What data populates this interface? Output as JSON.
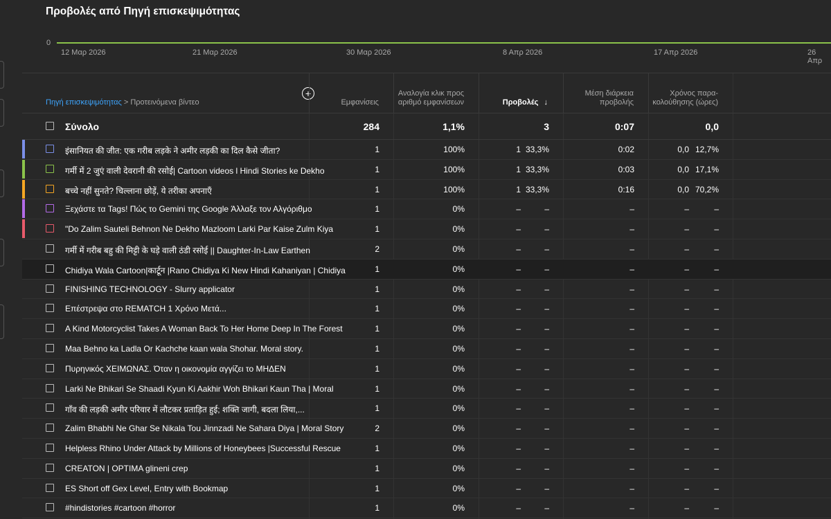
{
  "title": "Προβολές από Πηγή επισκεψιμότητας",
  "chart": {
    "y_zero": "0",
    "dates": [
      "12 Μαρ 2026",
      "21 Μαρ 2026",
      "30 Μαρ 2026",
      "8 Απρ 2026",
      "17 Απρ 2026",
      "26 Απρ"
    ],
    "line_color": "#8bc34a"
  },
  "breadcrumb": {
    "link": "Πηγή επισκεψιμότητας",
    "separator": ">",
    "current": "Προτεινόμενα βίντεο"
  },
  "columns": {
    "impressions": "Εμφανίσεις",
    "ctr": "Αναλογία κλικ προς αριθμό εμφανίσεων",
    "views": "Προβολές",
    "avg_duration": "Μέση διάρκεια προβολής",
    "watch_time": "Χρόνος παρα-κολούθησης (ώρες)"
  },
  "sort_icon": "arrow-down-icon",
  "total": {
    "label": "Σύνολο",
    "impressions": "284",
    "ctr": "1,1%",
    "views": "3",
    "avg_duration": "0:07",
    "watch_time": "0,0"
  },
  "rows": [
    {
      "title": "इंसानियत की जीत: एक गरीब लड़के ने अमीर लड़की का दिल कैसे जीता?",
      "color": "#7b8fe8",
      "impressions": "1",
      "ctr": "100%",
      "views": "1",
      "views_pct": "33,3%",
      "avg_duration": "0:02",
      "watch_time": "0,0",
      "watch_pct": "12,7%"
    },
    {
      "title": "गर्मी में 2 जुएं वाली देवरानी की रसोई| Cartoon videos l Hindi Stories ke Dekho",
      "color": "#8bc34a",
      "impressions": "1",
      "ctr": "100%",
      "views": "1",
      "views_pct": "33,3%",
      "avg_duration": "0:03",
      "watch_time": "0,0",
      "watch_pct": "17,1%"
    },
    {
      "title": "बच्चे नहीं सुनते? चिल्लाना छोड़ें, ये तरीका अपनाएँ",
      "color": "#f5a623",
      "impressions": "1",
      "ctr": "100%",
      "views": "1",
      "views_pct": "33,3%",
      "avg_duration": "0:16",
      "watch_time": "0,0",
      "watch_pct": "70,2%"
    },
    {
      "title": "Ξεχάστε τα Tags! Πώς το Gemini της Google Άλλαξε τον Αλγόριθμο",
      "color": "#b36be8",
      "impressions": "1",
      "ctr": "0%",
      "views": "–",
      "views_pct": "–",
      "avg_duration": "–",
      "watch_time": "–",
      "watch_pct": "–"
    },
    {
      "title": "\"Do Zalim Sauteli Behnon Ne Dekho Mazloom Larki Par Kaise Zulm Kiya",
      "color": "#e85a6b",
      "impressions": "1",
      "ctr": "0%",
      "views": "–",
      "views_pct": "–",
      "avg_duration": "–",
      "watch_time": "–",
      "watch_pct": "–"
    },
    {
      "title": "गर्मी में गरीब बहु की मिट्टी के घड़े वाली ठंडी रसोई || Daughter-In-Law Earthen",
      "color": "",
      "impressions": "2",
      "ctr": "0%",
      "views": "–",
      "views_pct": "–",
      "avg_duration": "–",
      "watch_time": "–",
      "watch_pct": "–"
    },
    {
      "title": "Chidiya Wala Cartoon|कार्टून |Rano Chidiya Ki New Hindi Kahaniyan | Chidiya",
      "color": "",
      "impressions": "1",
      "ctr": "0%",
      "views": "–",
      "views_pct": "–",
      "avg_duration": "–",
      "watch_time": "–",
      "watch_pct": "–"
    },
    {
      "title": "FINISHING TECHNOLOGY - Slurry applicator",
      "color": "",
      "impressions": "1",
      "ctr": "0%",
      "views": "–",
      "views_pct": "–",
      "avg_duration": "–",
      "watch_time": "–",
      "watch_pct": "–"
    },
    {
      "title": "Επέστρεψα στο REMATCH 1 Χρόνο Μετά...",
      "color": "",
      "impressions": "1",
      "ctr": "0%",
      "views": "–",
      "views_pct": "–",
      "avg_duration": "–",
      "watch_time": "–",
      "watch_pct": "–"
    },
    {
      "title": "A Kind Motorcyclist Takes A Woman Back To Her Home Deep In The Forest",
      "color": "",
      "impressions": "1",
      "ctr": "0%",
      "views": "–",
      "views_pct": "–",
      "avg_duration": "–",
      "watch_time": "–",
      "watch_pct": "–"
    },
    {
      "title": "Maa Behno ka Ladla Or Kachche kaan wala Shohar. Moral story.",
      "color": "",
      "impressions": "1",
      "ctr": "0%",
      "views": "–",
      "views_pct": "–",
      "avg_duration": "–",
      "watch_time": "–",
      "watch_pct": "–"
    },
    {
      "title": "Πυρηνικός ΧΕΙΜΩΝΑΣ. Όταν η οικονομία αγγίζει το ΜΗΔΕΝ",
      "color": "",
      "impressions": "1",
      "ctr": "0%",
      "views": "–",
      "views_pct": "–",
      "avg_duration": "–",
      "watch_time": "–",
      "watch_pct": "–"
    },
    {
      "title": "Larki Ne Bhikari Se Shaadi Kyun Ki Aakhir Woh Bhikari Kaun Tha | Moral",
      "color": "",
      "impressions": "1",
      "ctr": "0%",
      "views": "–",
      "views_pct": "–",
      "avg_duration": "–",
      "watch_time": "–",
      "watch_pct": "–"
    },
    {
      "title": "गाँव की लड़की अमीर परिवार में लौटकर प्रताड़ित हुई; शक्ति जागी, बदला लिया,...",
      "color": "",
      "impressions": "1",
      "ctr": "0%",
      "views": "–",
      "views_pct": "–",
      "avg_duration": "–",
      "watch_time": "–",
      "watch_pct": "–"
    },
    {
      "title": "Zalim Bhabhi Ne Ghar Se Nikala Tou Jinnzadi Ne Sahara Diya | Moral Story",
      "color": "",
      "impressions": "2",
      "ctr": "0%",
      "views": "–",
      "views_pct": "–",
      "avg_duration": "–",
      "watch_time": "–",
      "watch_pct": "–"
    },
    {
      "title": "Helpless Rhino Under Attack by Millions of Honeybees |Successful Rescue",
      "color": "",
      "impressions": "1",
      "ctr": "0%",
      "views": "–",
      "views_pct": "–",
      "avg_duration": "–",
      "watch_time": "–",
      "watch_pct": "–"
    },
    {
      "title": "CREATON | OPTIMA glineni crep",
      "color": "",
      "impressions": "1",
      "ctr": "0%",
      "views": "–",
      "views_pct": "–",
      "avg_duration": "–",
      "watch_time": "–",
      "watch_pct": "–"
    },
    {
      "title": "ES Short off Gex Level, Entry with Bookmap",
      "color": "",
      "impressions": "1",
      "ctr": "0%",
      "views": "–",
      "views_pct": "–",
      "avg_duration": "–",
      "watch_time": "–",
      "watch_pct": "–"
    },
    {
      "title": "#hindistories #cartoon #horror",
      "color": "",
      "impressions": "1",
      "ctr": "0%",
      "views": "–",
      "views_pct": "–",
      "avg_duration": "–",
      "watch_time": "–",
      "watch_pct": "–"
    }
  ]
}
